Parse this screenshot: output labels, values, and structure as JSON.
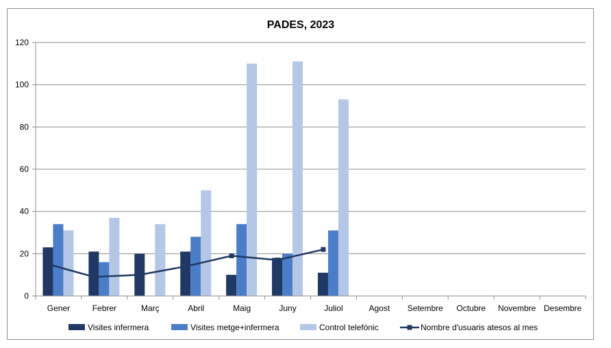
{
  "chart_data": {
    "type": "bar",
    "title": "PADES, 2023",
    "xlabel": "",
    "ylabel": "",
    "ylim": [
      0,
      120
    ],
    "yticks": [
      0,
      20,
      40,
      60,
      80,
      100,
      120
    ],
    "grid": true,
    "legend_position": "bottom",
    "categories": [
      "Gener",
      "Febrer",
      "Març",
      "Abril",
      "Maig",
      "Juny",
      "Juliol",
      "Agost",
      "Setembre",
      "Octubre",
      "Novembre",
      "Desembre"
    ],
    "series": [
      {
        "name": "Visites infermera",
        "kind": "bar",
        "color": "#1f3864",
        "values": [
          23,
          21,
          20,
          21,
          10,
          18,
          11,
          null,
          null,
          null,
          null,
          null
        ]
      },
      {
        "name": "Visites metge+infermera",
        "kind": "bar",
        "color": "#4a7ec8",
        "values": [
          34,
          16,
          0,
          28,
          34,
          20,
          31,
          null,
          null,
          null,
          null,
          null
        ]
      },
      {
        "name": "Control telefònic",
        "kind": "bar",
        "color": "#b4c7e7",
        "values": [
          31,
          37,
          34,
          50,
          110,
          111,
          93,
          null,
          null,
          null,
          null,
          null
        ]
      },
      {
        "name": "Nombre d'usuaris atesos al mes",
        "kind": "line",
        "color": "#1f3864",
        "values": [
          15,
          9,
          10,
          14,
          19,
          17,
          22,
          null,
          null,
          null,
          null,
          null
        ]
      }
    ]
  }
}
